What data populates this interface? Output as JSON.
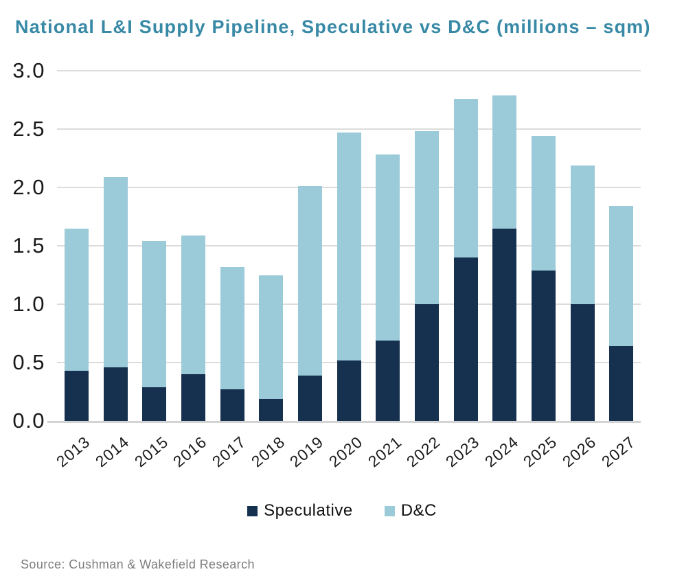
{
  "title": "National L&I Supply Pipeline, Speculative vs D&C (millions – sqm)",
  "source": "Source: Cushman & Wakefield Research",
  "colors": {
    "speculative": "#16314F",
    "dc": "#9BCAD8",
    "title": "#3889A6",
    "gridline": "#DCDCDC",
    "axis_line": "#D3D3D3",
    "tick_text": "#1A1A1A",
    "source_text": "#7D7D7D",
    "background": "#FFFFFF"
  },
  "legend": {
    "position": "bottom",
    "items": [
      {
        "label": "Speculative",
        "color_key": "speculative"
      },
      {
        "label": "D&C",
        "color_key": "dc"
      }
    ]
  },
  "chart_data": {
    "type": "bar",
    "stacked": true,
    "title": "National L&I Supply Pipeline, Speculative vs D&C (millions – sqm)",
    "xlabel": "",
    "ylabel": "",
    "ylim": [
      0,
      3
    ],
    "ytick_step": 0.5,
    "ytick_labels": [
      "3.0",
      "2.5",
      "2.0",
      "1.5",
      "1.0",
      "0.5",
      "0.0"
    ],
    "grid": true,
    "categories": [
      "2013",
      "2014",
      "2015",
      "2016",
      "2017",
      "2018",
      "2019",
      "2020",
      "2021",
      "2022",
      "2023",
      "2024",
      "2025",
      "2026",
      "2027"
    ],
    "series": [
      {
        "name": "Speculative",
        "values": [
          0.43,
          0.46,
          0.29,
          0.4,
          0.27,
          0.19,
          0.39,
          0.52,
          0.69,
          1.0,
          1.4,
          1.65,
          1.29,
          1.0,
          0.64
        ]
      },
      {
        "name": "D&C",
        "values": [
          1.22,
          1.63,
          1.25,
          1.19,
          1.05,
          1.06,
          1.62,
          1.95,
          1.59,
          1.48,
          1.36,
          1.14,
          1.15,
          1.19,
          1.2
        ]
      }
    ],
    "totals": [
      1.65,
      2.09,
      1.54,
      1.59,
      1.32,
      1.25,
      2.01,
      2.47,
      2.28,
      2.48,
      2.76,
      2.79,
      2.44,
      2.19,
      1.84
    ]
  }
}
